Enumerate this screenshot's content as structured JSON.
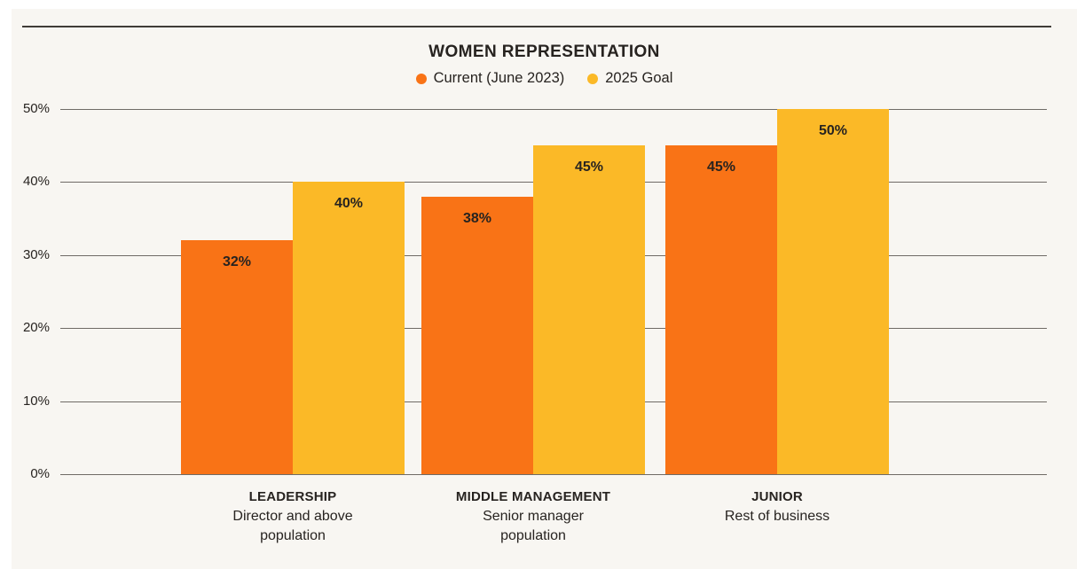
{
  "panel": {
    "background_color": "#f8f6f2",
    "top_rule_color": "#403c38"
  },
  "chart_data": {
    "type": "bar",
    "title": "WOMEN REPRESENTATION",
    "legend": [
      {
        "label": "Current (June 2023)",
        "color": "#f97316"
      },
      {
        "label": "2025 Goal",
        "color": "#fbb927"
      }
    ],
    "legend_position": "top-center",
    "grid": true,
    "value_suffix": "%",
    "y_axis": {
      "min": 0,
      "max": 50,
      "tick_values": [
        50,
        40,
        30,
        20,
        10,
        0
      ],
      "tick_labels": [
        "50%",
        "40%",
        "30%",
        "20%",
        "10%",
        "0%"
      ]
    },
    "categories": [
      {
        "name": "LEADERSHIP",
        "sublabel": "Director and above\npopulation"
      },
      {
        "name": "MIDDLE MANAGEMENT",
        "sublabel": "Senior manager\npopulation"
      },
      {
        "name": "JUNIOR",
        "sublabel": "Rest of business"
      }
    ],
    "series": [
      {
        "name": "Current (June 2023)",
        "color": "#f97316",
        "values": [
          32,
          38,
          45
        ]
      },
      {
        "name": "2025 Goal",
        "color": "#fbb927",
        "values": [
          40,
          45,
          50
        ]
      }
    ],
    "value_labels": [
      [
        "32%",
        "38%",
        "45%"
      ],
      [
        "40%",
        "45%",
        "50%"
      ]
    ],
    "text_color": "#272320",
    "gridline_color": "#6f6b66"
  }
}
